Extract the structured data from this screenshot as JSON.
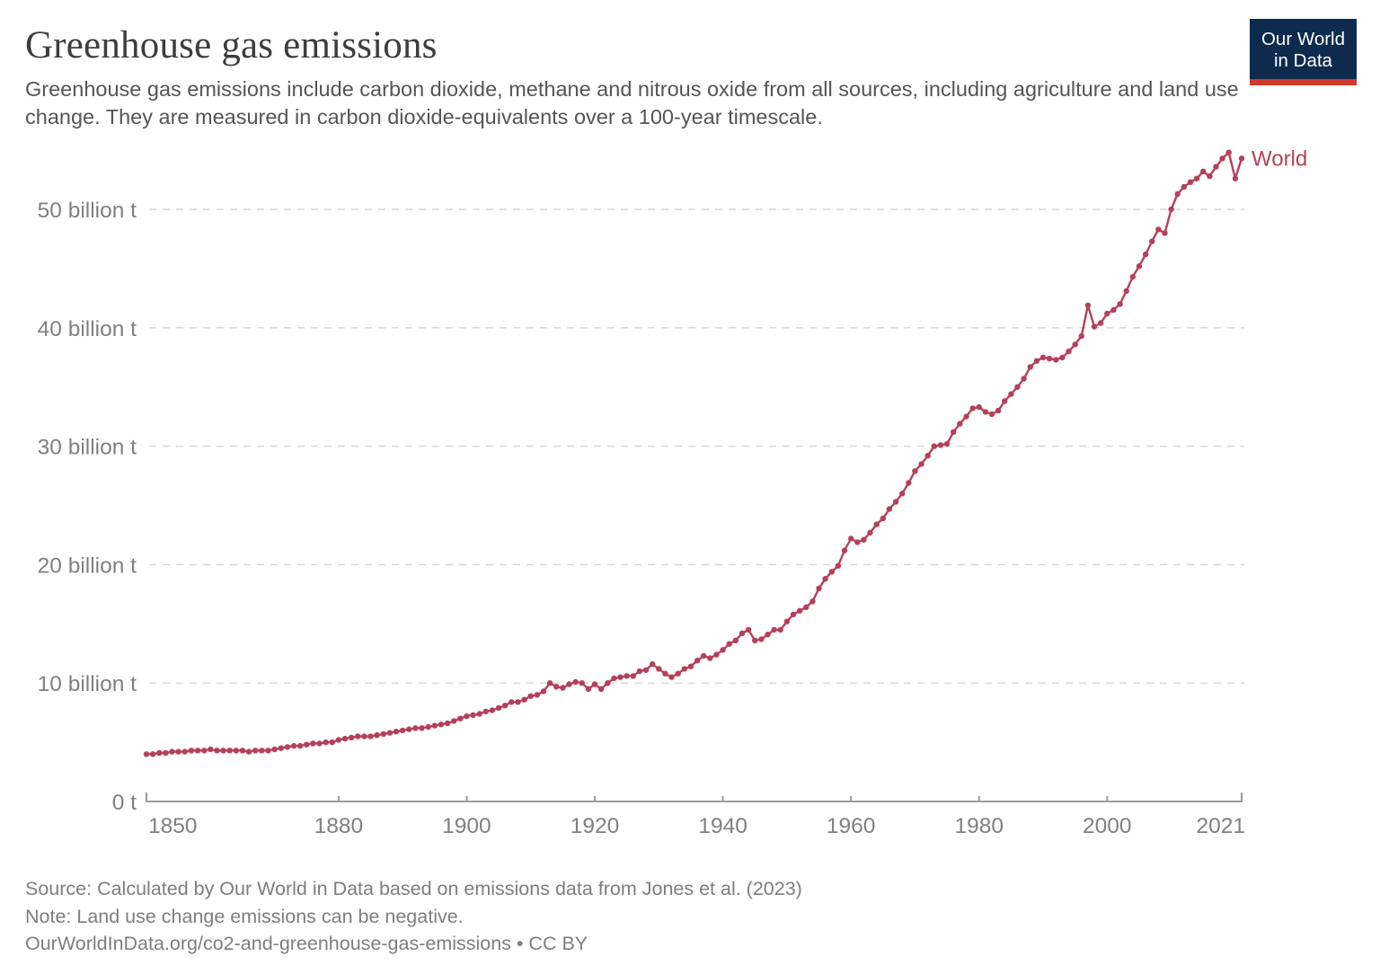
{
  "header": {
    "title": "Greenhouse gas emissions",
    "subtitle": "Greenhouse gas emissions include carbon dioxide, methane and nitrous oxide from all sources, including agriculture and land use change. They are measured in carbon dioxide-equivalents over a 100-year timescale.",
    "logo": {
      "line1": "Our World",
      "line2": "in Data"
    }
  },
  "chart_data": {
    "type": "line",
    "title": "Greenhouse gas emissions",
    "xlabel": "",
    "ylabel": "",
    "x_start": 1850,
    "x_end": 2021,
    "xlim": [
      1850,
      2021
    ],
    "ylim": [
      0,
      55
    ],
    "grid": "horizontal-dashed",
    "legend_position": "end-of-line-label",
    "xticks": [
      1850,
      1880,
      1900,
      1920,
      1940,
      1960,
      1980,
      2000,
      2021
    ],
    "yticks": [
      {
        "value": 0,
        "label": "0 t"
      },
      {
        "value": 10,
        "label": "10 billion t"
      },
      {
        "value": 20,
        "label": "20 billion t"
      },
      {
        "value": 30,
        "label": "30 billion t"
      },
      {
        "value": 40,
        "label": "40 billion t"
      },
      {
        "value": 50,
        "label": "50 billion t"
      }
    ],
    "series": [
      {
        "name": "World",
        "color": "#b5405c",
        "values": [
          4.0,
          4.0,
          4.1,
          4.1,
          4.2,
          4.2,
          4.2,
          4.3,
          4.3,
          4.3,
          4.4,
          4.3,
          4.3,
          4.3,
          4.3,
          4.3,
          4.2,
          4.3,
          4.3,
          4.3,
          4.4,
          4.5,
          4.6,
          4.7,
          4.7,
          4.8,
          4.9,
          4.9,
          5.0,
          5.0,
          5.2,
          5.3,
          5.4,
          5.5,
          5.5,
          5.5,
          5.6,
          5.7,
          5.8,
          5.9,
          6.0,
          6.1,
          6.2,
          6.2,
          6.3,
          6.4,
          6.5,
          6.6,
          6.8,
          7.0,
          7.2,
          7.3,
          7.4,
          7.6,
          7.7,
          7.9,
          8.1,
          8.4,
          8.4,
          8.6,
          8.9,
          9.0,
          9.3,
          10.0,
          9.7,
          9.6,
          9.9,
          10.1,
          10.0,
          9.5,
          9.9,
          9.5,
          10.0,
          10.4,
          10.5,
          10.6,
          10.6,
          11.0,
          11.1,
          11.6,
          11.2,
          10.8,
          10.5,
          10.8,
          11.2,
          11.4,
          11.9,
          12.3,
          12.1,
          12.4,
          12.8,
          13.3,
          13.6,
          14.2,
          14.5,
          13.6,
          13.7,
          14.1,
          14.5,
          14.5,
          15.2,
          15.8,
          16.1,
          16.4,
          16.9,
          18.0,
          18.8,
          19.4,
          19.9,
          21.2,
          22.2,
          21.9,
          22.1,
          22.7,
          23.4,
          23.9,
          24.7,
          25.3,
          26.0,
          26.9,
          27.9,
          28.5,
          29.2,
          30.0,
          30.1,
          30.2,
          31.2,
          31.9,
          32.5,
          33.2,
          33.3,
          32.9,
          32.7,
          33.0,
          33.8,
          34.4,
          35.0,
          35.7,
          36.7,
          37.2,
          37.5,
          37.4,
          37.3,
          37.5,
          38.0,
          38.6,
          39.3,
          41.9,
          40.1,
          40.4,
          41.2,
          41.5,
          42.0,
          43.1,
          44.3,
          45.2,
          46.2,
          47.3,
          48.3,
          48.0,
          50.0,
          51.3,
          51.9,
          52.3,
          52.6,
          53.2,
          52.8,
          53.6,
          54.3,
          54.8,
          52.6,
          54.3
        ]
      }
    ]
  },
  "footer": {
    "source": "Source: Calculated by Our World in Data based on emissions data from Jones et al. (2023)",
    "note": "Note: Land use change emissions can be negative.",
    "citation": "OurWorldInData.org/co2-and-greenhouse-gas-emissions • CC BY"
  },
  "colors": {
    "line": "#b5405c",
    "axis": "#9b9b9b",
    "grid": "#d6d6d6",
    "tick_label": "#808080",
    "logo_bg": "#0e2b4d",
    "logo_accent": "#d0382e"
  }
}
